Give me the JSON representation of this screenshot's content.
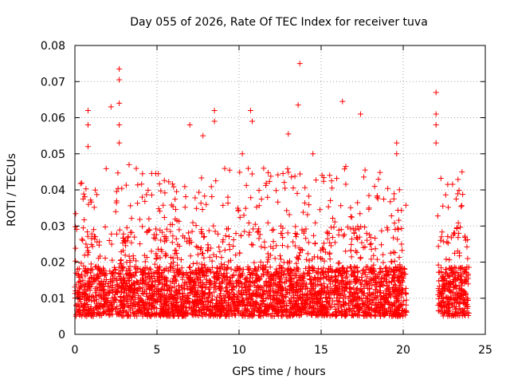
{
  "chart_data": {
    "type": "scatter",
    "title": "Day 055 of 2026, Rate Of TEC Index for receiver tuva",
    "xlabel": "GPS time / hours",
    "ylabel": "ROTI / TECUs",
    "xlim": [
      0,
      25
    ],
    "ylim": [
      0,
      0.08
    ],
    "x_ticks": [
      0,
      5,
      10,
      15,
      20,
      25
    ],
    "y_ticks": [
      0,
      0.01,
      0.02,
      0.03,
      0.04,
      0.05,
      0.06,
      0.07,
      0.08
    ],
    "x_tick_labels": [
      "0",
      "5",
      "10",
      "15",
      "20",
      "25"
    ],
    "y_tick_labels": [
      "0",
      "0.01",
      "0.02",
      "0.03",
      "0.04",
      "0.05",
      "0.06",
      "0.07",
      "0.08"
    ],
    "grid": true,
    "marker": "+",
    "series_color": "#ff0000",
    "data_gaps_hours": [
      [
        20.2,
        22.1
      ]
    ],
    "series": [
      {
        "name": "ROTI",
        "segments": [
          {
            "x_range": [
              0.0,
              20.2
            ],
            "typical_range": [
              0.005,
              0.03
            ]
          },
          {
            "x_range": [
              22.1,
              24.0
            ],
            "typical_range": [
              0.005,
              0.03
            ]
          }
        ],
        "outliers": [
          {
            "x": 0.8,
            "y": 0.062
          },
          {
            "x": 0.8,
            "y": 0.058
          },
          {
            "x": 0.8,
            "y": 0.052
          },
          {
            "x": 2.2,
            "y": 0.063
          },
          {
            "x": 2.7,
            "y": 0.0735
          },
          {
            "x": 2.7,
            "y": 0.0705
          },
          {
            "x": 2.7,
            "y": 0.064
          },
          {
            "x": 2.7,
            "y": 0.058
          },
          {
            "x": 2.7,
            "y": 0.053
          },
          {
            "x": 3.3,
            "y": 0.047
          },
          {
            "x": 7.0,
            "y": 0.058
          },
          {
            "x": 7.8,
            "y": 0.055
          },
          {
            "x": 8.5,
            "y": 0.062
          },
          {
            "x": 8.5,
            "y": 0.059
          },
          {
            "x": 10.2,
            "y": 0.05
          },
          {
            "x": 10.7,
            "y": 0.062
          },
          {
            "x": 10.8,
            "y": 0.059
          },
          {
            "x": 11.5,
            "y": 0.046
          },
          {
            "x": 13.0,
            "y": 0.0555
          },
          {
            "x": 13.6,
            "y": 0.0635
          },
          {
            "x": 13.7,
            "y": 0.075
          },
          {
            "x": 14.5,
            "y": 0.05
          },
          {
            "x": 16.3,
            "y": 0.0645
          },
          {
            "x": 16.5,
            "y": 0.0465
          },
          {
            "x": 17.4,
            "y": 0.061
          },
          {
            "x": 19.6,
            "y": 0.053
          },
          {
            "x": 19.6,
            "y": 0.05
          },
          {
            "x": 22.0,
            "y": 0.067
          },
          {
            "x": 22.0,
            "y": 0.061
          },
          {
            "x": 22.0,
            "y": 0.058
          },
          {
            "x": 22.0,
            "y": 0.053
          }
        ]
      }
    ]
  }
}
